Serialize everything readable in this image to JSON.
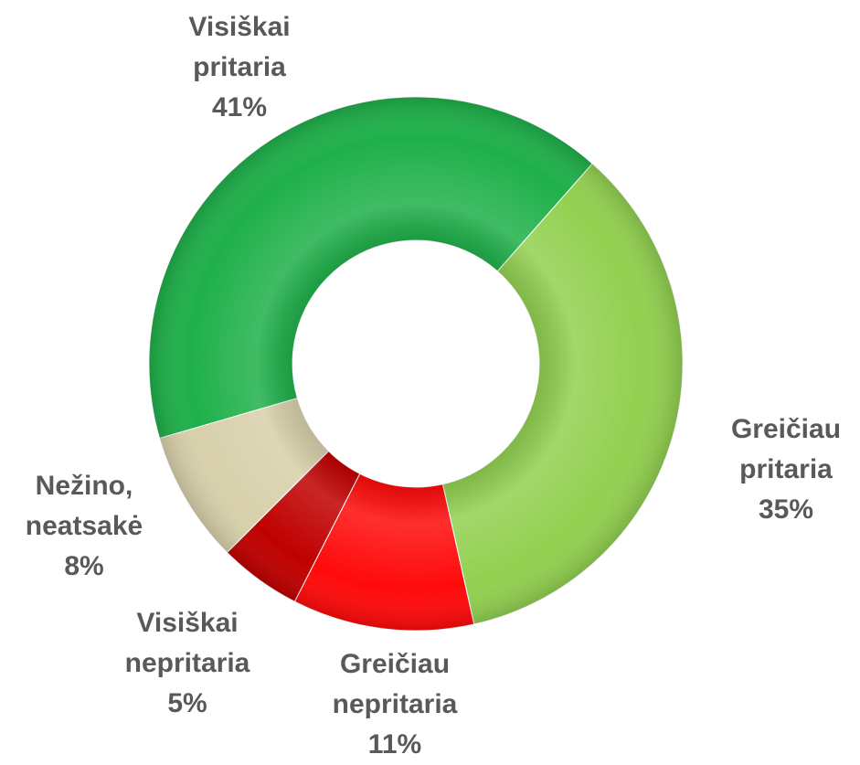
{
  "chart_data": {
    "type": "donut",
    "categories": [
      "Greičiau pritaria",
      "Greičiau nepritaria",
      "Visiškai nepritaria",
      "Nežino, neatsakė",
      "Visiškai pritaria"
    ],
    "values": [
      35,
      11,
      5,
      8,
      41
    ],
    "value_labels": [
      "35%",
      "11%",
      "5%",
      "8%",
      "41%"
    ],
    "colors": [
      "#92d050",
      "#ff0a0a",
      "#c00000",
      "#d8d0ab",
      "#1fb04a"
    ]
  }
}
